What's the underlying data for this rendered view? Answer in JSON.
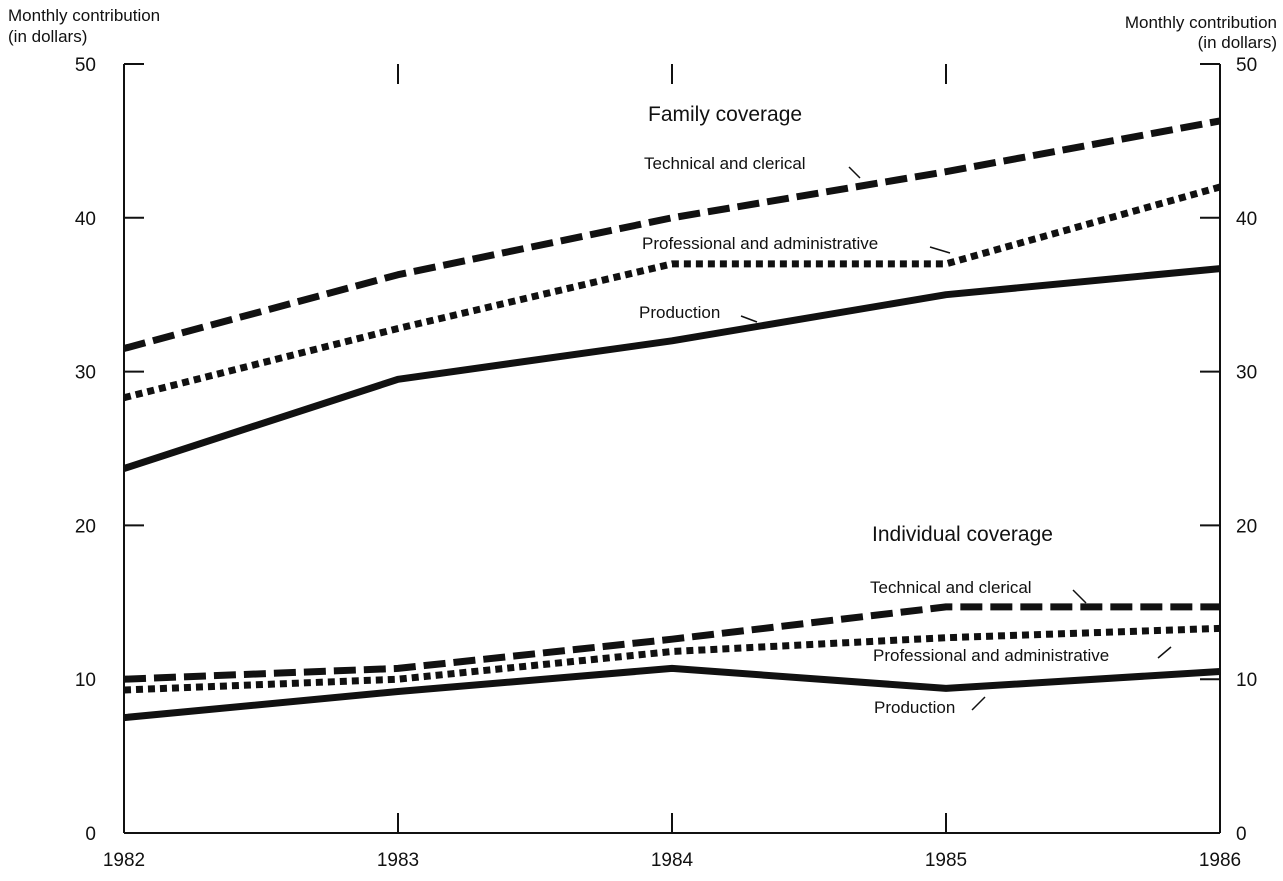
{
  "chart_data": {
    "type": "line",
    "x": [
      1982,
      1983,
      1984,
      1985,
      1986
    ],
    "ylim": [
      0,
      50
    ],
    "yticks": [
      0,
      10,
      20,
      30,
      40,
      50
    ],
    "grid": false,
    "ylabel_left": [
      "Monthly contribution",
      "(in dollars)"
    ],
    "ylabel_right": [
      "Monthly contribution",
      "(in dollars)"
    ],
    "groups": [
      {
        "title": "Family coverage",
        "series": [
          {
            "name": "Technical and clerical",
            "style": "dash",
            "values": [
              31.5,
              36.3,
              40.0,
              43.0,
              46.3
            ]
          },
          {
            "name": "Professional and administrative",
            "style": "dot",
            "values": [
              28.3,
              32.8,
              37.0,
              37.0,
              42.0
            ]
          },
          {
            "name": "Production",
            "style": "solid",
            "values": [
              23.7,
              29.5,
              32.0,
              35.0,
              36.7
            ]
          }
        ]
      },
      {
        "title": "Individual coverage",
        "series": [
          {
            "name": "Technical and clerical",
            "style": "dash",
            "values": [
              10.0,
              10.7,
              12.6,
              14.7,
              14.7
            ]
          },
          {
            "name": "Professional and administrative",
            "style": "dot",
            "values": [
              9.3,
              10.0,
              11.8,
              12.7,
              13.3
            ]
          },
          {
            "name": "Production",
            "style": "solid",
            "values": [
              7.5,
              9.2,
              10.7,
              9.4,
              10.5
            ]
          }
        ]
      }
    ]
  }
}
